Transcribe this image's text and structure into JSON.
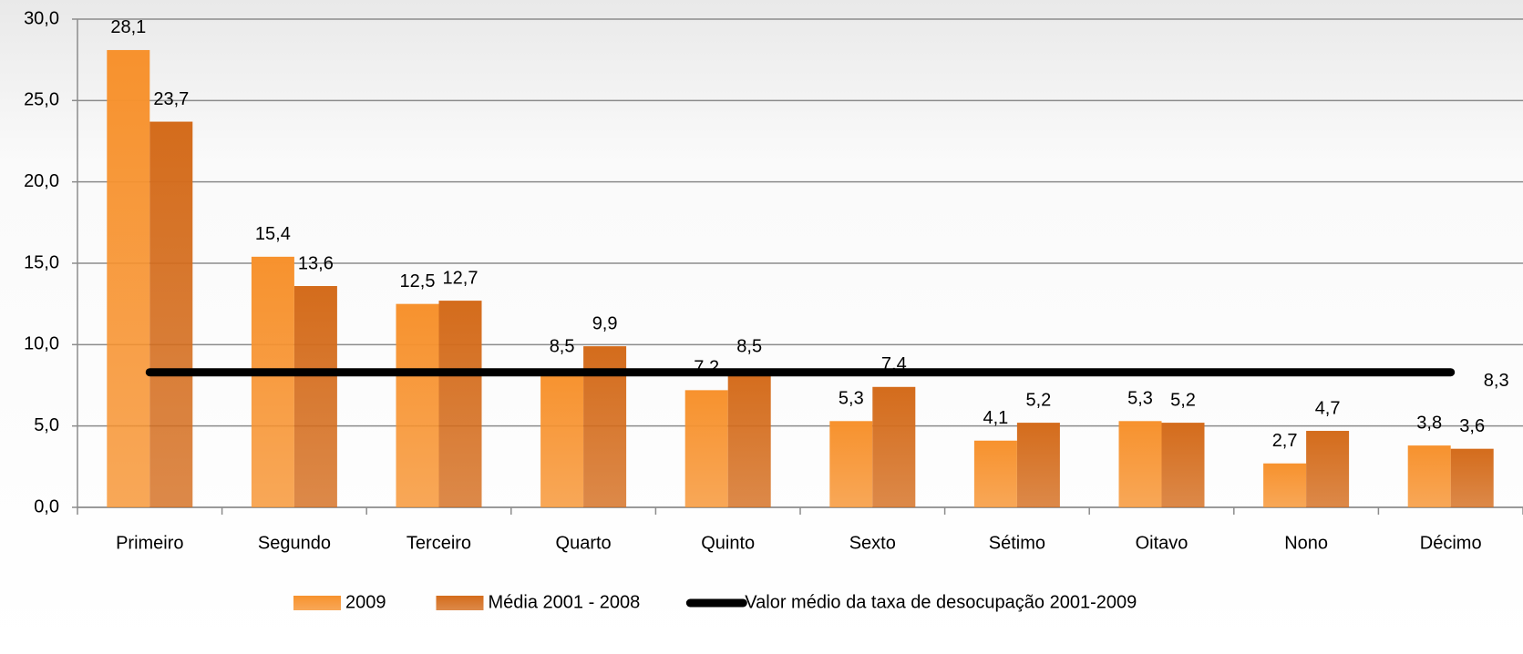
{
  "chart_data": {
    "type": "bar",
    "categories": [
      "Primeiro",
      "Segundo",
      "Terceiro",
      "Quarto",
      "Quinto",
      "Sexto",
      "Sétimo",
      "Oitavo",
      "Nono",
      "Décimo"
    ],
    "series": [
      {
        "name": "2009",
        "color": "#f7922e",
        "values": [
          28.1,
          15.4,
          12.5,
          8.5,
          7.2,
          5.3,
          4.1,
          5.3,
          2.7,
          3.8
        ],
        "value_labels": [
          "28,1",
          "15,4",
          "12,5",
          "8,5",
          "7,2",
          "5,3",
          "4,1",
          "5,3",
          "2,7",
          "3,8"
        ]
      },
      {
        "name": "Média 2001 - 2008",
        "color": "#d46c1c",
        "values": [
          23.7,
          13.6,
          12.7,
          9.9,
          8.5,
          7.4,
          5.2,
          5.2,
          4.7,
          3.6
        ],
        "value_labels": [
          "23,7",
          "13,6",
          "12,7",
          "9,9",
          "8,5",
          "7,4",
          "5,2",
          "5,2",
          "4,7",
          "3,6"
        ]
      },
      {
        "name": "Valor médio da taxa de desocupação 2001-2009",
        "type": "line",
        "color": "#000000",
        "values": [
          8.3,
          8.3,
          8.3,
          8.3,
          8.3,
          8.3,
          8.3,
          8.3,
          8.3,
          8.3
        ],
        "value_labels": [
          null,
          null,
          null,
          null,
          null,
          null,
          null,
          null,
          null,
          "8,3"
        ]
      }
    ],
    "ylim": [
      0,
      30
    ],
    "yticks": [
      {
        "value": 0,
        "label": "0,0"
      },
      {
        "value": 5,
        "label": "5,0"
      },
      {
        "value": 10,
        "label": "10,0"
      },
      {
        "value": 15,
        "label": "15,0"
      },
      {
        "value": 20,
        "label": "20,0"
      },
      {
        "value": 25,
        "label": "25,0"
      },
      {
        "value": 30,
        "label": "30,0"
      }
    ],
    "grid": true,
    "legend": "bottom"
  }
}
